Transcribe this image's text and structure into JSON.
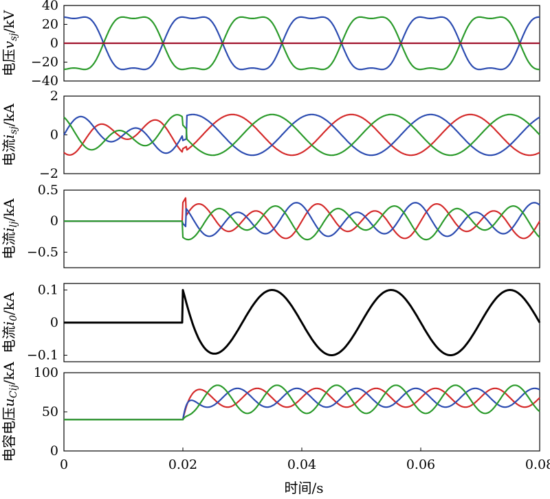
{
  "chart_data": [
    {
      "type": "line",
      "ylabel": "电压v_sj/kV",
      "ylabel_parts": {
        "pre": "电压",
        "var": "v",
        "sub": "sj",
        "post": "/kV"
      },
      "ylim": [
        -40,
        40
      ],
      "yticks": [
        "40",
        "20",
        "0",
        "−20",
        "−40"
      ],
      "ytick_values": [
        40,
        20,
        0,
        -20,
        -40
      ],
      "xlim": [
        0,
        0.08
      ],
      "series": [
        {
          "color": "#2b4bb0",
          "kind": "sine",
          "amp": 32,
          "freq": 50,
          "phase_deg": 60,
          "harm": 0.18
        },
        {
          "color": "#2a9a2a",
          "kind": "sine",
          "amp": 32,
          "freq": 50,
          "phase_deg": -120,
          "harm": 0.18
        },
        {
          "color": "#a0102a",
          "kind": "const",
          "value": 0
        }
      ]
    },
    {
      "type": "line",
      "ylabel": "电流i_sj/kA",
      "ylabel_parts": {
        "pre": "电流",
        "var": "i",
        "sub": "sj",
        "post": "/kA"
      },
      "ylim": [
        -2,
        2
      ],
      "yticks": [
        "2",
        "0",
        "−2"
      ],
      "ytick_values": [
        2,
        0,
        -2
      ],
      "xlim": [
        0,
        0.08
      ],
      "event_t": 0.02,
      "series": [
        {
          "color": "#d42a2a",
          "pre_amp": 1.05,
          "post_amp": 1.05,
          "freq": 50,
          "phase_deg": 240
        },
        {
          "color": "#2b4bb0",
          "pre_amp": 1.05,
          "post_amp": 1.05,
          "freq": 50,
          "phase_deg": 0
        },
        {
          "color": "#2a9a2a",
          "pre_amp": 1.05,
          "post_amp": 1.05,
          "freq": 50,
          "phase_deg": 120
        }
      ]
    },
    {
      "type": "line",
      "ylabel": "电流i_lj/kA",
      "ylabel_parts": {
        "pre": "电流",
        "var": "i",
        "sub": "lj",
        "post": "/kA"
      },
      "ylim": [
        -0.75,
        0.5
      ],
      "yticks": [
        "0.5",
        "0",
        "−0.5"
      ],
      "ytick_values": [
        0.5,
        0,
        -0.5
      ],
      "xlim": [
        0,
        0.08
      ],
      "event_t": 0.02,
      "pre_value": 0,
      "series": [
        {
          "color": "#d42a2a",
          "amp": 0.22,
          "freq": 100,
          "phase_deg": 0
        },
        {
          "color": "#2b4bb0",
          "amp": 0.22,
          "freq": 100,
          "phase_deg": 120
        },
        {
          "color": "#2a9a2a",
          "amp": 0.22,
          "freq": 100,
          "phase_deg": 240
        }
      ]
    },
    {
      "type": "line",
      "ylabel": "电流i_0/kA",
      "ylabel_parts": {
        "pre": "电流",
        "var": "i",
        "sub": "0",
        "post": "/kA"
      },
      "ylim": [
        -0.12,
        0.12
      ],
      "yticks": [
        "0.1",
        "0",
        "−0.1"
      ],
      "ytick_values": [
        0.1,
        0,
        -0.1
      ],
      "xlim": [
        0,
        0.08
      ],
      "event_t": 0.02,
      "series": [
        {
          "color": "#000000",
          "pre_value": 0,
          "amp": 0.1,
          "freq": 50,
          "peaks_t": [
            0.035,
            0.055,
            0.075
          ],
          "troughs_t": [
            0.0245,
            0.045,
            0.065
          ]
        }
      ]
    },
    {
      "type": "line",
      "ylabel": "电容电压u_Cij/kA",
      "ylabel_parts": {
        "pre": "电容电压",
        "var": "u",
        "sub": "Cij",
        "post": "/kA"
      },
      "ylim": [
        0,
        100
      ],
      "yticks": [
        "100",
        "50",
        "0"
      ],
      "ytick_values": [
        100,
        50,
        0
      ],
      "xlim": [
        0,
        0.08
      ],
      "event_t": 0.02,
      "pre_value": 40,
      "series": [
        {
          "color": "#d42a2a",
          "mean": 68,
          "amp": 12,
          "freq": 100,
          "phase_deg": 0
        },
        {
          "color": "#2b4bb0",
          "mean": 68,
          "amp": 12,
          "freq": 100,
          "phase_deg": 120
        },
        {
          "color": "#2a9a2a",
          "mean": 66,
          "amp": 18,
          "freq": 100,
          "phase_deg": 240
        }
      ],
      "xticks": [
        "0",
        "0.02",
        "0.04",
        "0.06",
        "0.08"
      ],
      "xtick_values": [
        0,
        0.02,
        0.04,
        0.06,
        0.08
      ],
      "xlabel": "时间/s"
    }
  ]
}
